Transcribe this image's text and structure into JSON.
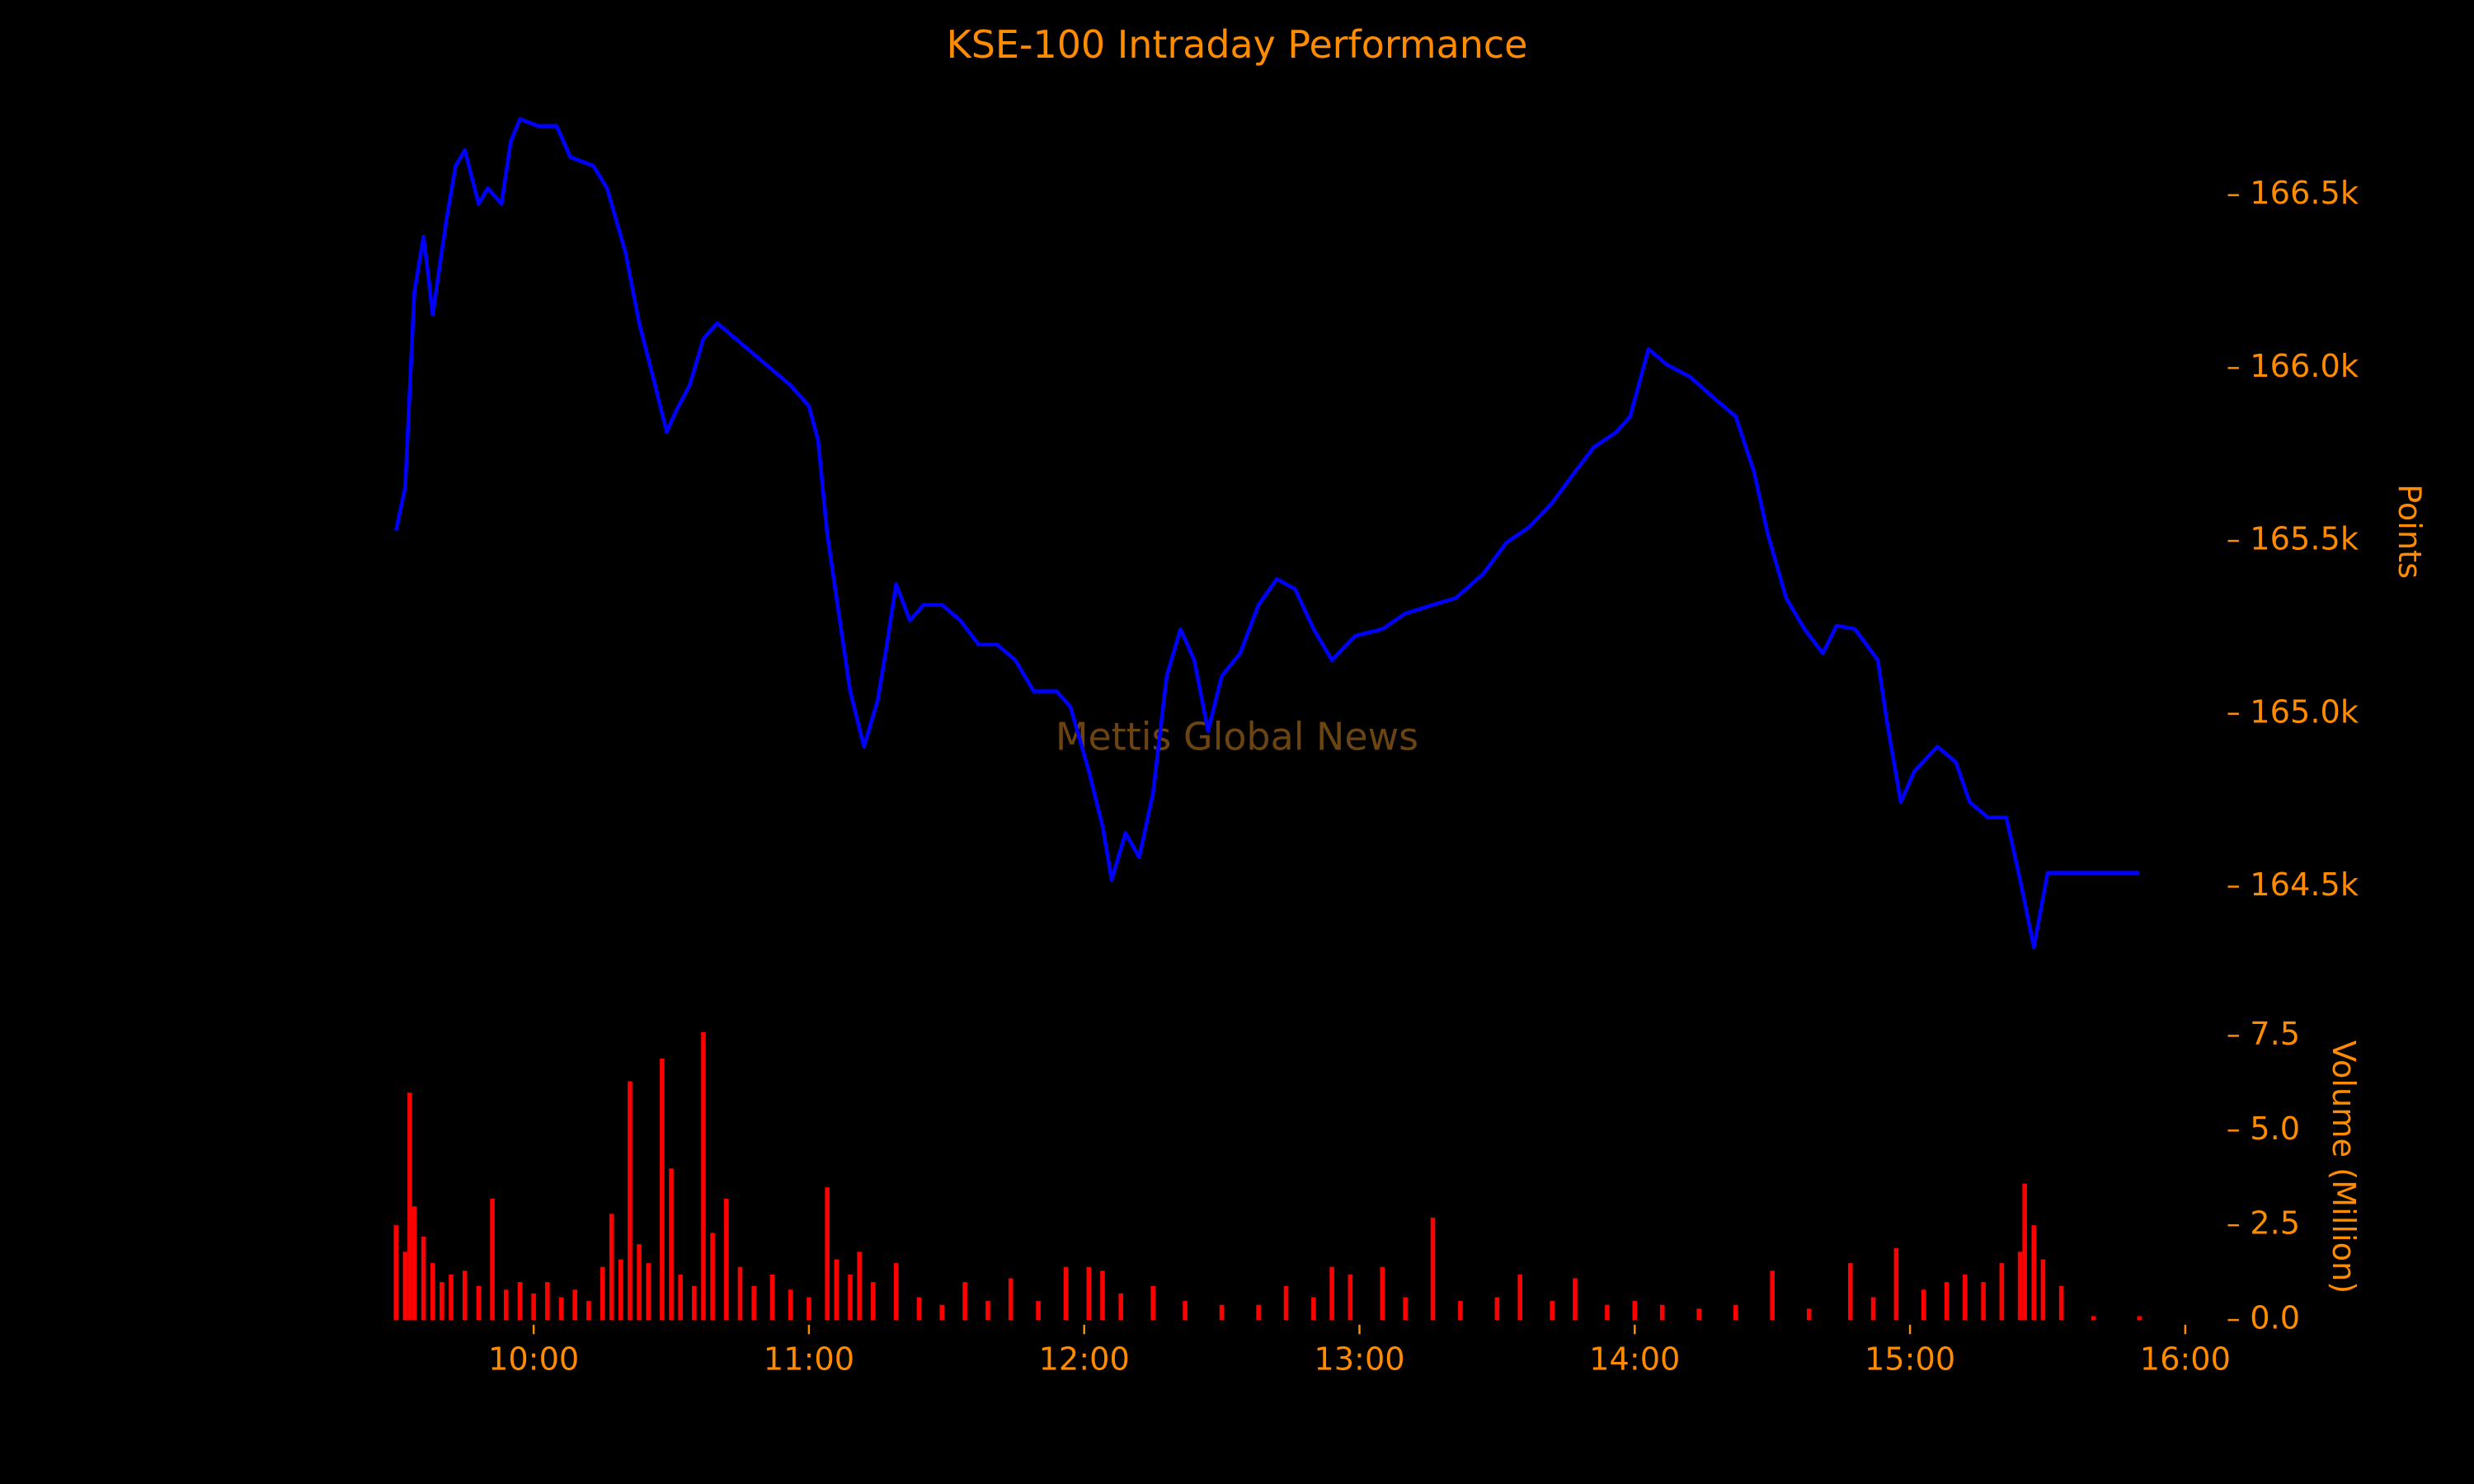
{
  "chart_data": [
    {
      "type": "line",
      "title": "KSE-100 Intraday Performance",
      "watermark": "Mettis Global News",
      "y_label": "Points",
      "y_side": "right",
      "color": "#0000ff",
      "x": [
        "09:30",
        "09:32",
        "09:34",
        "09:36",
        "09:37",
        "09:38",
        "09:41",
        "09:43",
        "09:45",
        "09:48",
        "09:50",
        "09:53",
        "09:55",
        "09:57",
        "10:01",
        "10:05",
        "10:08",
        "10:13",
        "10:16",
        "10:20",
        "10:23",
        "10:26",
        "10:29",
        "10:31",
        "10:34",
        "10:37",
        "10:40",
        "10:44",
        "10:48",
        "10:52",
        "10:56",
        "11:00",
        "11:02",
        "11:04",
        "11:07",
        "11:09",
        "11:12",
        "11:15",
        "11:17",
        "11:19",
        "11:22",
        "11:25",
        "11:29",
        "11:33",
        "11:37",
        "11:41",
        "11:45",
        "11:49",
        "11:54",
        "11:57",
        "12:01",
        "12:04",
        "12:06",
        "12:09",
        "12:12",
        "12:15",
        "12:18",
        "12:21",
        "12:24",
        "12:27",
        "12:30",
        "12:34",
        "12:38",
        "12:42",
        "12:46",
        "12:50",
        "12:54",
        "12:59",
        "13:05",
        "13:10",
        "13:16",
        "13:21",
        "13:27",
        "13:32",
        "13:37",
        "13:42",
        "13:47",
        "13:51",
        "13:56",
        "13:59",
        "14:03",
        "14:07",
        "14:12",
        "14:18",
        "14:22",
        "14:26",
        "14:29",
        "14:33",
        "14:37",
        "14:41",
        "14:44",
        "14:48",
        "14:53",
        "14:55",
        "14:58",
        "15:01",
        "15:06",
        "15:10",
        "15:13",
        "15:17",
        "15:21",
        "15:24",
        "15:27",
        "15:30",
        "15:50"
      ],
      "values": [
        165530,
        165655,
        166220,
        166380,
        166270,
        166155,
        166430,
        166585,
        166630,
        166475,
        166520,
        166475,
        166655,
        166720,
        166700,
        166700,
        166610,
        166585,
        166520,
        166335,
        166130,
        165975,
        165815,
        165875,
        165950,
        166085,
        166130,
        166085,
        166040,
        165995,
        165950,
        165890,
        165790,
        165520,
        165245,
        165065,
        164905,
        165040,
        165200,
        165375,
        165270,
        165315,
        165315,
        165270,
        165200,
        165200,
        165155,
        165065,
        165065,
        165020,
        164835,
        164675,
        164520,
        164655,
        164585,
        164770,
        165110,
        165245,
        165155,
        164950,
        165110,
        165175,
        165315,
        165390,
        165360,
        165245,
        165155,
        165225,
        165245,
        165290,
        165315,
        165335,
        165405,
        165495,
        165540,
        165610,
        165700,
        165770,
        165815,
        165860,
        166055,
        166010,
        165975,
        165905,
        165860,
        165700,
        165520,
        165335,
        165245,
        165175,
        165255,
        165245,
        165155,
        164975,
        164745,
        164835,
        164905,
        164860,
        164745,
        164700,
        164700,
        164520,
        164325,
        164540,
        164540
      ],
      "xlim": [
        "09:30",
        "16:00"
      ],
      "ylim": [
        164200,
        166850
      ],
      "yticks": [
        {
          "value": 164500,
          "label": "164.5k"
        },
        {
          "value": 165000,
          "label": "165.0k"
        },
        {
          "value": 165500,
          "label": "165.5k"
        },
        {
          "value": 166000,
          "label": "166.0k"
        },
        {
          "value": 166500,
          "label": "166.5k"
        }
      ]
    },
    {
      "type": "bar",
      "y_label": "Volume (Million)",
      "y_side": "right",
      "color": "#ff0000",
      "x": [
        "09:30",
        "09:32",
        "09:33",
        "09:34",
        "09:36",
        "09:38",
        "09:40",
        "09:42",
        "09:45",
        "09:48",
        "09:51",
        "09:54",
        "09:57",
        "10:00",
        "10:03",
        "10:06",
        "10:09",
        "10:12",
        "10:15",
        "10:17",
        "10:19",
        "10:21",
        "10:23",
        "10:25",
        "10:28",
        "10:30",
        "10:32",
        "10:35",
        "10:37",
        "10:39",
        "10:42",
        "10:45",
        "10:48",
        "10:52",
        "10:56",
        "11:00",
        "11:04",
        "11:06",
        "11:09",
        "11:11",
        "11:14",
        "11:19",
        "11:24",
        "11:29",
        "11:34",
        "11:39",
        "11:44",
        "11:50",
        "11:56",
        "12:01",
        "12:04",
        "12:08",
        "12:15",
        "12:22",
        "12:30",
        "12:38",
        "12:44",
        "12:50",
        "12:54",
        "12:58",
        "13:05",
        "13:10",
        "13:16",
        "13:22",
        "13:30",
        "13:35",
        "13:42",
        "13:47",
        "13:54",
        "14:00",
        "14:06",
        "14:14",
        "14:22",
        "14:30",
        "14:38",
        "14:47",
        "14:52",
        "14:57",
        "15:03",
        "15:08",
        "15:12",
        "15:16",
        "15:20",
        "15:24",
        "15:25",
        "15:27",
        "15:29",
        "15:33",
        "15:40",
        "15:50"
      ],
      "values": [
        2.5,
        1.8,
        6.0,
        3.0,
        2.2,
        1.5,
        1.0,
        1.2,
        1.3,
        0.9,
        3.2,
        0.8,
        1.0,
        0.7,
        1.0,
        0.6,
        0.8,
        0.5,
        1.4,
        2.8,
        1.6,
        6.3,
        2.0,
        1.5,
        6.9,
        4.0,
        1.2,
        0.9,
        7.6,
        2.3,
        3.2,
        1.4,
        0.9,
        1.2,
        0.8,
        0.6,
        3.5,
        1.6,
        1.2,
        1.8,
        1.0,
        1.5,
        0.6,
        0.4,
        1.0,
        0.5,
        1.1,
        0.5,
        1.4,
        1.4,
        1.3,
        0.7,
        0.9,
        0.5,
        0.4,
        0.4,
        0.9,
        0.6,
        1.4,
        1.2,
        1.4,
        0.6,
        2.7,
        0.5,
        0.6,
        1.2,
        0.5,
        1.1,
        0.4,
        0.5,
        0.4,
        0.3,
        0.4,
        1.3,
        0.3,
        1.5,
        0.6,
        1.9,
        0.8,
        1.0,
        1.2,
        1.0,
        1.5,
        1.8,
        3.6,
        2.5,
        1.6,
        0.9,
        0.1,
        0.1
      ],
      "xlim": [
        "09:30",
        "16:00"
      ],
      "xticks": [
        "10:00",
        "11:00",
        "12:00",
        "13:00",
        "14:00",
        "15:00",
        "16:00"
      ],
      "ylim": [
        0,
        7.7
      ],
      "yticks": [
        {
          "value": 0,
          "label": "0.0"
        },
        2.5,
        {
          "value": 5,
          "label": "5.0"
        },
        7.5
      ]
    }
  ]
}
